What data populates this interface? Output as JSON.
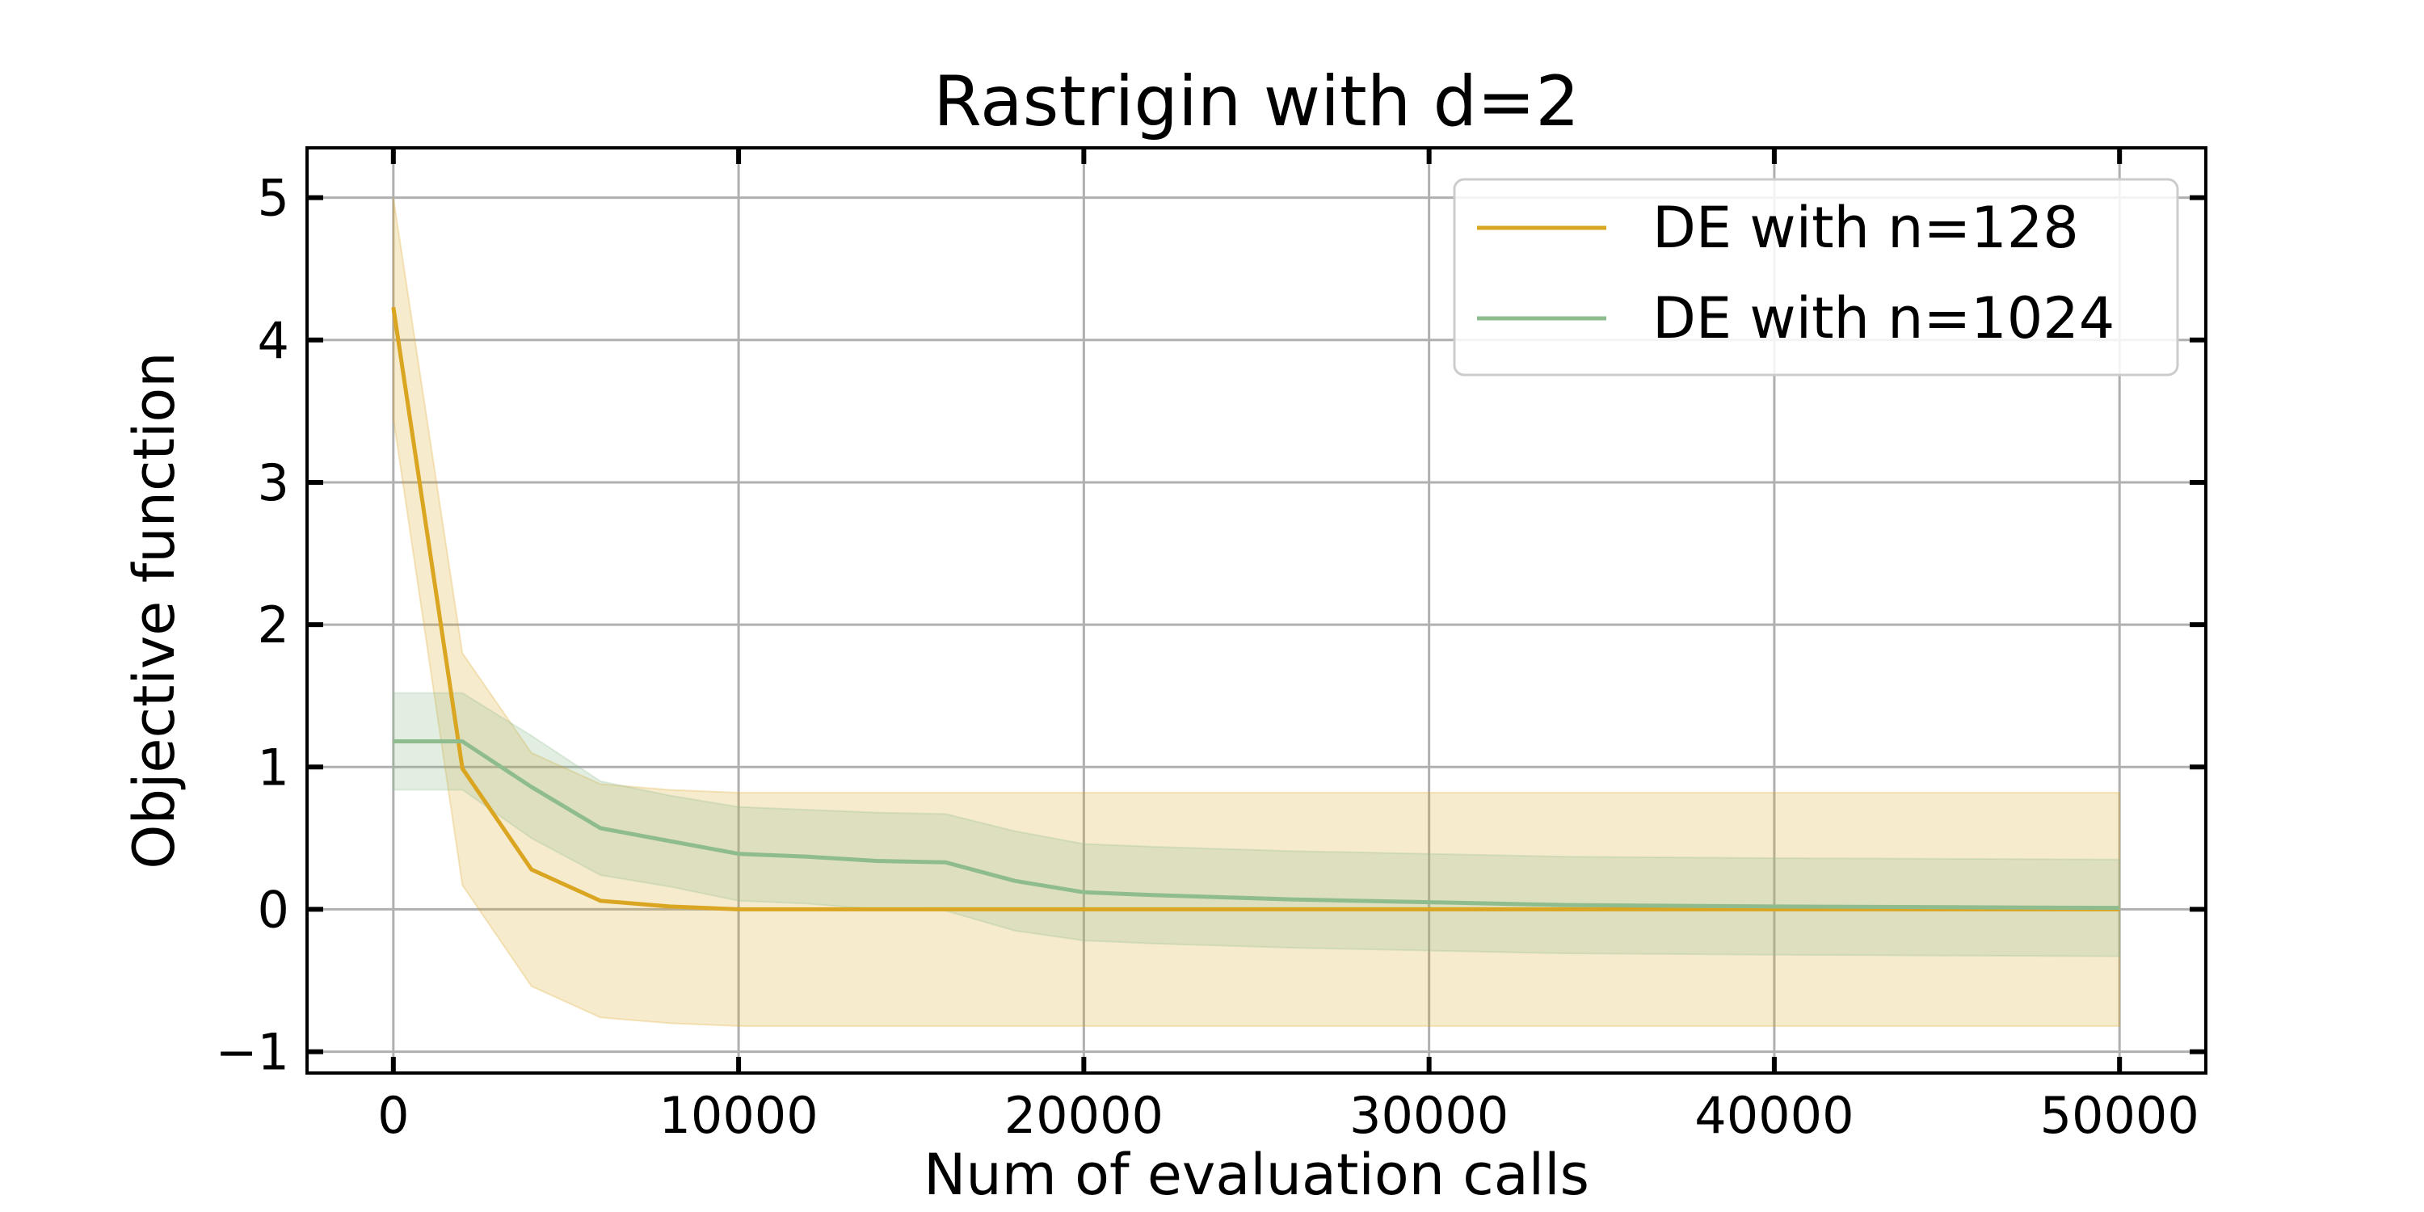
{
  "chart_data": {
    "type": "line",
    "title": "Rastrigin with d=2",
    "xlabel": "Num of evaluation calls",
    "ylabel": "Objective function",
    "xlim": [
      -2500,
      52500
    ],
    "ylim": [
      -1.15,
      5.35
    ],
    "xticks": [
      0,
      10000,
      20000,
      30000,
      40000,
      50000
    ],
    "yticks": [
      -1,
      0,
      1,
      2,
      3,
      4,
      5
    ],
    "xtick_labels": [
      "0",
      "10000",
      "20000",
      "30000",
      "40000",
      "50000"
    ],
    "ytick_labels": [
      "−1",
      "0",
      "1",
      "2",
      "3",
      "4",
      "5"
    ],
    "grid": true,
    "legend_position": "top-right",
    "series": [
      {
        "name": "DE with n=128",
        "color": "#DAA520",
        "x": [
          0,
          2000,
          4000,
          6000,
          8000,
          10000,
          12000,
          14000,
          16000,
          18000,
          20000,
          30000,
          40000,
          50000
        ],
        "y": [
          4.23,
          0.99,
          0.28,
          0.06,
          0.02,
          0.0,
          0.0,
          0.0,
          0.0,
          0.0,
          0.0,
          0.0,
          0.0,
          0.0
        ],
        "upper": [
          5.0,
          1.8,
          1.1,
          0.88,
          0.84,
          0.82,
          0.82,
          0.82,
          0.82,
          0.82,
          0.82,
          0.82,
          0.82,
          0.82
        ],
        "lower": [
          3.45,
          0.17,
          -0.54,
          -0.76,
          -0.8,
          -0.82,
          -0.82,
          -0.82,
          -0.82,
          -0.82,
          -0.82,
          -0.82,
          -0.82,
          -0.82
        ]
      },
      {
        "name": "DE with n=1024",
        "color": "#8FBC8F",
        "x": [
          0,
          2000,
          4000,
          6000,
          8000,
          10000,
          12000,
          14000,
          16000,
          18000,
          20000,
          22000,
          26000,
          30000,
          34000,
          40000,
          50000
        ],
        "y": [
          1.18,
          1.18,
          0.86,
          0.57,
          0.48,
          0.39,
          0.37,
          0.34,
          0.33,
          0.2,
          0.12,
          0.1,
          0.07,
          0.05,
          0.03,
          0.02,
          0.01
        ],
        "upper": [
          1.52,
          1.52,
          1.22,
          0.9,
          0.8,
          0.72,
          0.7,
          0.68,
          0.67,
          0.55,
          0.46,
          0.44,
          0.41,
          0.39,
          0.37,
          0.36,
          0.35
        ],
        "lower": [
          0.84,
          0.84,
          0.5,
          0.24,
          0.16,
          0.06,
          0.04,
          0.0,
          -0.01,
          -0.15,
          -0.22,
          -0.24,
          -0.27,
          -0.29,
          -0.31,
          -0.32,
          -0.33
        ]
      }
    ]
  }
}
